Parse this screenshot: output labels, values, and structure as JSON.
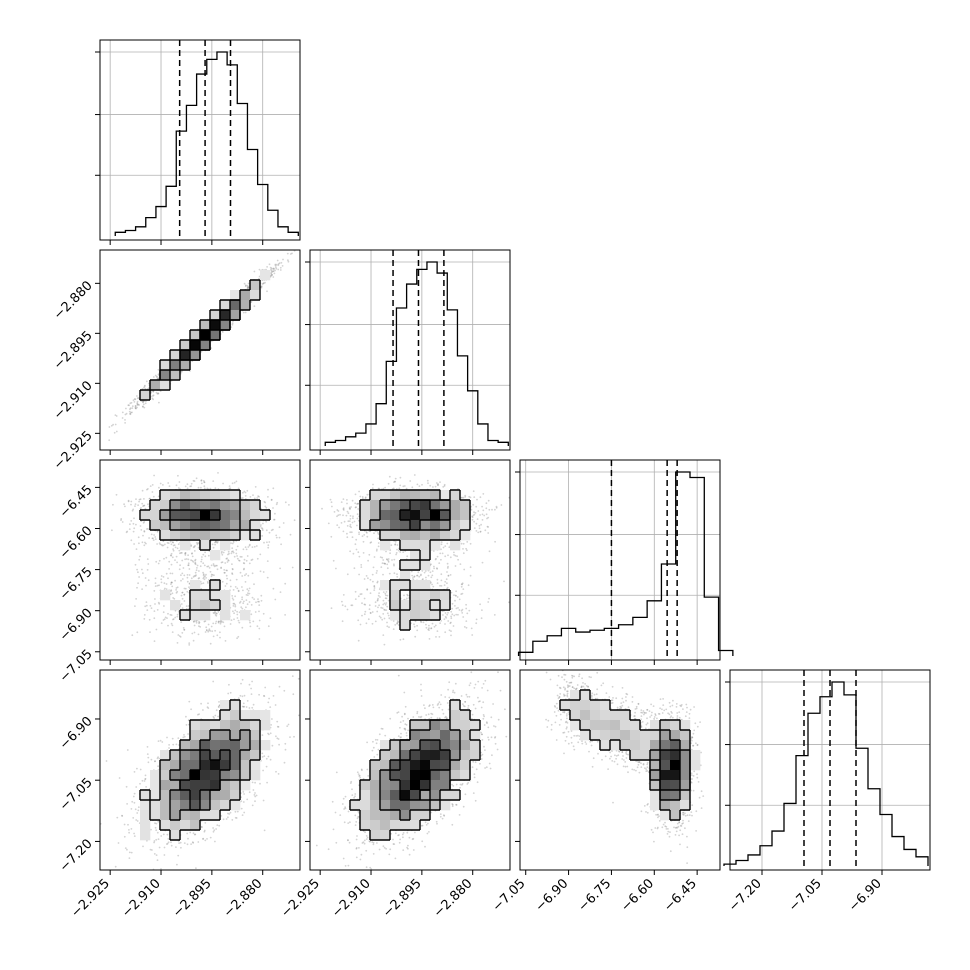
{
  "figure": {
    "type": "corner-plot",
    "parameters": [
      "",
      "",
      "",
      ""
    ],
    "colors": {
      "hist": "#000000",
      "scatter": "#808080",
      "grid": "#b0b0b0",
      "density_dark": "#000000",
      "density_light": "#ffffff"
    }
  },
  "chart_data": [
    {
      "type": "histogram",
      "panel": "hist-0",
      "x": [
        -2.922,
        -2.919,
        -2.916,
        -2.913,
        -2.91,
        -2.907,
        -2.904,
        -2.901,
        -2.898,
        -2.895,
        -2.892,
        -2.889,
        -2.886,
        -2.883,
        -2.88,
        -2.877,
        -2.874,
        -2.871
      ],
      "values": [
        2,
        3,
        5,
        10,
        16,
        27,
        57,
        71,
        88,
        96,
        100,
        93,
        72,
        47,
        28,
        14,
        5,
        2
      ],
      "quantiles": [
        -2.9045,
        -2.897,
        -2.8895
      ],
      "xlim": [
        -2.928,
        -2.869
      ],
      "xticks": [
        -2.925,
        -2.91,
        -2.895,
        -2.88
      ],
      "xticklabels": [
        "−2.925",
        "−2.910",
        "−2.895",
        "−2.880"
      ],
      "grid": true
    },
    {
      "type": "histogram",
      "panel": "hist-1",
      "x": [
        -2.922,
        -2.919,
        -2.916,
        -2.913,
        -2.91,
        -2.907,
        -2.904,
        -2.901,
        -2.898,
        -2.895,
        -2.892,
        -2.889,
        -2.886,
        -2.883,
        -2.88,
        -2.877,
        -2.874,
        -2.871
      ],
      "values": [
        2,
        3,
        5,
        7,
        12,
        23,
        46,
        75,
        88,
        96,
        100,
        94,
        74,
        49,
        30,
        12,
        3,
        2
      ],
      "quantiles": [
        -2.9035,
        -2.896,
        -2.8885
      ],
      "xlim": [
        -2.928,
        -2.869
      ],
      "xticks": [
        -2.925,
        -2.91,
        -2.895,
        -2.88
      ],
      "xticklabels": [
        "−2.925",
        "−2.910",
        "−2.895",
        "−2.880"
      ],
      "grid": true
    },
    {
      "type": "histogram",
      "panel": "hist-2",
      "x": [
        -7.05,
        -7.0,
        -6.95,
        -6.9,
        -6.85,
        -6.8,
        -6.75,
        -6.7,
        -6.65,
        -6.6,
        -6.55,
        -6.5,
        -6.45,
        -6.4,
        -6.35
      ],
      "values": [
        2,
        8,
        11,
        15,
        13,
        14,
        15,
        17,
        21,
        30,
        50,
        100,
        97,
        32,
        3
      ],
      "quantiles": [
        -6.75,
        -6.555,
        -6.52
      ],
      "xlim": [
        -7.07,
        -6.37
      ],
      "xticks": [
        -7.05,
        -6.9,
        -6.75,
        -6.6,
        -6.45
      ],
      "xticklabels": [
        "−7.05",
        "−6.90",
        "−6.75",
        "−6.60",
        "−6.45"
      ],
      "grid": true
    },
    {
      "type": "histogram",
      "panel": "hist-3",
      "x": [
        -7.28,
        -7.25,
        -7.22,
        -7.19,
        -7.16,
        -7.13,
        -7.1,
        -7.07,
        -7.04,
        -7.01,
        -6.98,
        -6.95,
        -6.92,
        -6.89,
        -6.86,
        -6.83,
        -6.8
      ],
      "values": [
        1,
        3,
        6,
        11,
        19,
        34,
        60,
        83,
        92,
        100,
        93,
        64,
        42,
        28,
        16,
        9,
        5
      ],
      "quantiles": [
        -7.095,
        -7.03,
        -6.965
      ],
      "xlim": [
        -7.28,
        -6.78
      ],
      "xticks": [
        -7.2,
        -7.05,
        -6.9
      ],
      "xticklabels": [
        "−7.20",
        "−7.05",
        "−6.90"
      ],
      "grid": true
    },
    {
      "type": "scatter-density",
      "panel": "scatter-1-0",
      "scatter": "correlated",
      "cx": -2.897,
      "cy": -2.896,
      "sx": 0.0088,
      "sy": 0.0088,
      "rho": 0.985,
      "xlim": [
        -2.928,
        -2.869
      ],
      "ylim": [
        -2.93,
        -2.87
      ],
      "yticks": [
        -2.88,
        -2.895,
        -2.91,
        -2.925
      ],
      "yticklabels": [
        "−2.880",
        "−2.895",
        "−2.910",
        "−2.925"
      ]
    },
    {
      "type": "scatter-density",
      "panel": "scatter-2-0",
      "scatter": "bimodal",
      "xlim": [
        -2.928,
        -2.869
      ],
      "ylim": [
        -7.08,
        -6.35
      ],
      "yticks": [
        -6.45,
        -6.6,
        -6.75,
        -6.9,
        -7.05
      ],
      "yticklabels": [
        "−6.45",
        "−6.60",
        "−6.75",
        "−6.90",
        "−7.05"
      ]
    },
    {
      "type": "scatter-density",
      "panel": "scatter-2-1",
      "scatter": "bimodal",
      "xlim": [
        -2.928,
        -2.869
      ],
      "ylim": [
        -7.08,
        -6.35
      ]
    },
    {
      "type": "scatter-density",
      "panel": "scatter-3-0",
      "scatter": "correlated",
      "cx": -2.897,
      "cy": -7.03,
      "sx": 0.0085,
      "sy": 0.075,
      "rho": 0.55,
      "xlim": [
        -2.928,
        -2.869
      ],
      "ylim": [
        -7.27,
        -6.78
      ],
      "yticks": [
        -6.9,
        -7.05,
        -7.2
      ],
      "yticklabels": [
        "−6.90",
        "−7.05",
        "−7.20"
      ]
    },
    {
      "type": "scatter-density",
      "panel": "scatter-3-1",
      "scatter": "correlated",
      "cx": -2.896,
      "cy": -7.03,
      "sx": 0.0085,
      "sy": 0.075,
      "rho": 0.55,
      "xlim": [
        -2.928,
        -2.869
      ],
      "ylim": [
        -7.27,
        -6.78
      ]
    },
    {
      "type": "scatter-density",
      "panel": "scatter-3-2",
      "scatter": "banana",
      "xlim": [
        -7.07,
        -6.37
      ],
      "ylim": [
        -7.27,
        -6.78
      ]
    }
  ]
}
